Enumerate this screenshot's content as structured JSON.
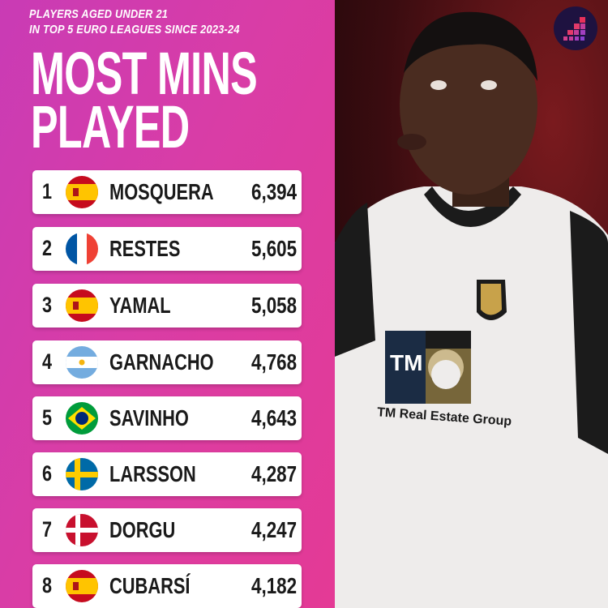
{
  "header": {
    "subtitle_line1": "PLAYERS AGED UNDER 21",
    "subtitle_line2": "IN TOP 5 EURO LEAGUES SINCE 2023-24",
    "title_line1": "MOST MINS",
    "title_line2": "PLAYED"
  },
  "rows": [
    {
      "rank": "1",
      "flag": "spain",
      "name": "MOSQUERA",
      "value": "6,394"
    },
    {
      "rank": "2",
      "flag": "france",
      "name": "RESTES",
      "value": "5,605"
    },
    {
      "rank": "3",
      "flag": "spain",
      "name": "YAMAL",
      "value": "5,058"
    },
    {
      "rank": "4",
      "flag": "argentina",
      "name": "GARNACHO",
      "value": "4,768"
    },
    {
      "rank": "5",
      "flag": "brazil",
      "name": "SAVINHO",
      "value": "4,643"
    },
    {
      "rank": "6",
      "flag": "sweden",
      "name": "LARSSON",
      "value": "4,287"
    },
    {
      "rank": "7",
      "flag": "denmark",
      "name": "DORGU",
      "value": "4,247"
    },
    {
      "rank": "8",
      "flag": "spain",
      "name": "CUBARSÍ",
      "value": "4,182"
    }
  ],
  "photo": {
    "sponsor_text": "TM Real Estate Group",
    "sponsor_logo": "TM"
  },
  "logo": "stats-stairs-icon",
  "colors": {
    "background": "#d63aa8",
    "row": "#ffffff",
    "text": "#1a1a1a"
  }
}
